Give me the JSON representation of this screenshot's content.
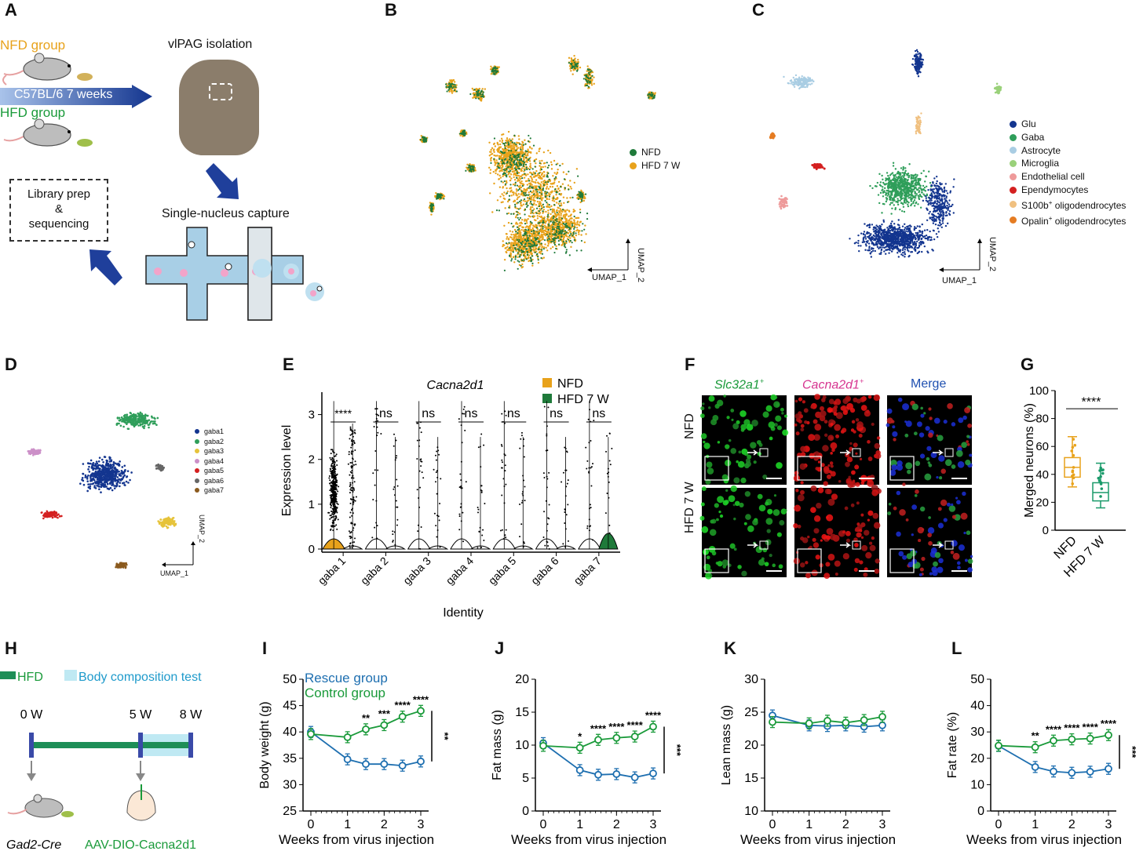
{
  "colors": {
    "nfd": "#e8a21b",
    "hfd": "#1f7a3a",
    "rescue": "#1e6fb0",
    "control": "#1a9a3a",
    "glu": "#13358f",
    "gaba": "#2f9e5a",
    "astrocyte": "#a9cde3",
    "microglia": "#9ad17a",
    "endothelial": "#ee9a9a",
    "ependymocytes": "#d42020",
    "s100b": "#f0c080",
    "opalin": "#e57c22"
  },
  "panel_labels": [
    "A",
    "B",
    "C",
    "D",
    "E",
    "F",
    "G",
    "H",
    "I",
    "J",
    "K",
    "L"
  ],
  "panelA": {
    "nfd_group": "NFD group",
    "strain": "C57BL/6  7 weeks",
    "hfd_group": "HFD group",
    "isolation": "vlPAG isolation",
    "library": "Library prep\n&\nsequencing",
    "capture": "Single-nucleus capture"
  },
  "panelB": {
    "legend": [
      "NFD",
      "HFD 7 W"
    ],
    "xlab": "UMAP_1",
    "ylab": "UMAP_2"
  },
  "panelC": {
    "legend": [
      "Glu",
      "Gaba",
      "Astrocyte",
      "Microglia",
      "Endothelial cell",
      "Ependymocytes",
      "S100b",
      "+",
      " oligodendrocytes",
      "Opalin"
    ],
    "xlab": "UMAP_1",
    "ylab": "UMAP_2"
  },
  "panelD": {
    "legend": [
      "gaba1",
      "gaba2",
      "gaba3",
      "gaba4",
      "gaba5",
      "gaba6",
      "gaba7"
    ],
    "xlab": "UMAP_1",
    "ylab": "UMAP_2"
  },
  "panelF": {
    "col1": "Slc32a1",
    "col2": "Cacna2d1",
    "sup": "+",
    "col3": "Merge",
    "row1": "NFD",
    "row2": "HFD 7 W"
  },
  "chart_data": [
    {
      "panel": "E",
      "type": "violin",
      "title": "Cacna2d1",
      "xlabel": "Identity",
      "ylabel": "Expression level",
      "categories": [
        "gaba 1",
        "gaba 2",
        "gaba 3",
        "gaba 4",
        "gaba 5",
        "gaba 6",
        "gaba 7"
      ],
      "ylim": [
        0,
        3.5
      ],
      "yticks": [
        "0",
        "1",
        "2",
        "3"
      ],
      "significance": [
        "****",
        "ns",
        "ns",
        "ns",
        "ns",
        "ns",
        "ns"
      ],
      "legend": [
        "NFD",
        "HFD 7 W"
      ]
    },
    {
      "panel": "G",
      "type": "box",
      "ylabel": "Merged neurons (%)",
      "ylim": [
        0,
        100
      ],
      "yticks": [
        "0",
        "20",
        "40",
        "60",
        "80",
        "100"
      ],
      "categories": [
        "NFD",
        "HFD 7 W"
      ],
      "series": [
        {
          "name": "NFD",
          "min": 31,
          "q1": 38,
          "median": 45,
          "q3": 52,
          "max": 67
        },
        {
          "name": "HFD 7 W",
          "min": 16,
          "q1": 21,
          "median": 27,
          "q3": 34,
          "max": 48
        }
      ],
      "significance": "****"
    },
    {
      "panel": "H",
      "type": "timeline",
      "legend": [
        "HFD",
        "Body composition test"
      ],
      "ticks": [
        "0 W",
        "5 W",
        "8 W"
      ],
      "labels": [
        "Gad2-Cre",
        "AAV-DIO-Cacna2d1"
      ]
    },
    {
      "panel": "I",
      "type": "line",
      "ylabel": "Body weight (g)",
      "xlabel": "Weeks from virus injection",
      "ylim": [
        25,
        50
      ],
      "yticks": [
        "25",
        "30",
        "35",
        "40",
        "45",
        "50"
      ],
      "xticks": [
        "0",
        "1",
        "2",
        "3"
      ],
      "x": [
        0,
        1,
        1.5,
        2,
        2.5,
        3
      ],
      "series": [
        {
          "name": "Rescue group",
          "values": [
            40,
            34.8,
            33.9,
            33.9,
            33.6,
            34.4
          ]
        },
        {
          "name": "Control group",
          "values": [
            39.6,
            39,
            40.5,
            41.3,
            42.9,
            44
          ]
        }
      ],
      "stars": [
        "",
        "",
        "**",
        "***",
        "****",
        "****"
      ],
      "overall": "**"
    },
    {
      "panel": "J",
      "type": "line",
      "ylabel": "Fat mass (g)",
      "xlabel": "Weeks from virus injection",
      "ylim": [
        0,
        20
      ],
      "yticks": [
        "0",
        "5",
        "10",
        "15",
        "20"
      ],
      "xticks": [
        "0",
        "1",
        "2",
        "3"
      ],
      "x": [
        0,
        1,
        1.5,
        2,
        2.5,
        3
      ],
      "series": [
        {
          "name": "Rescue group",
          "values": [
            10.3,
            6.2,
            5.5,
            5.6,
            5.1,
            5.7
          ]
        },
        {
          "name": "Control group",
          "values": [
            9.9,
            9.6,
            10.8,
            11.1,
            11.3,
            12.8
          ]
        }
      ],
      "stars": [
        "",
        "*",
        "****",
        "****",
        "****",
        "****"
      ],
      "overall": "***"
    },
    {
      "panel": "K",
      "type": "line",
      "ylabel": "Lean mass (g)",
      "xlabel": "Weeks from virus injection",
      "ylim": [
        10,
        30
      ],
      "yticks": [
        "10",
        "15",
        "20",
        "25",
        "30"
      ],
      "xticks": [
        "0",
        "1",
        "2",
        "3"
      ],
      "x": [
        0,
        1,
        1.5,
        2,
        2.5,
        3
      ],
      "series": [
        {
          "name": "Rescue group",
          "values": [
            24.5,
            23,
            22.9,
            23,
            22.8,
            23
          ]
        },
        {
          "name": "Control group",
          "values": [
            23.5,
            23.3,
            23.7,
            23.4,
            23.8,
            24.3
          ]
        }
      ],
      "stars": [
        "",
        "",
        "",
        "",
        "",
        ""
      ],
      "overall": ""
    },
    {
      "panel": "L",
      "type": "line",
      "ylabel": "Fat rate (%)",
      "xlabel": "Weeks from virus injection",
      "ylim": [
        0,
        50
      ],
      "yticks": [
        "0",
        "10",
        "20",
        "30",
        "40",
        "50"
      ],
      "xticks": [
        "0",
        "1",
        "2",
        "3"
      ],
      "x": [
        0,
        1,
        1.5,
        2,
        2.5,
        3
      ],
      "series": [
        {
          "name": "Rescue group",
          "values": [
            24.7,
            16.7,
            15,
            14.5,
            14.9,
            16
          ]
        },
        {
          "name": "Control group",
          "values": [
            24.8,
            24.2,
            26.7,
            27.2,
            27.5,
            28.8
          ]
        }
      ],
      "stars": [
        "",
        "**",
        "****",
        "****",
        "****",
        "****"
      ],
      "overall": "***"
    }
  ]
}
